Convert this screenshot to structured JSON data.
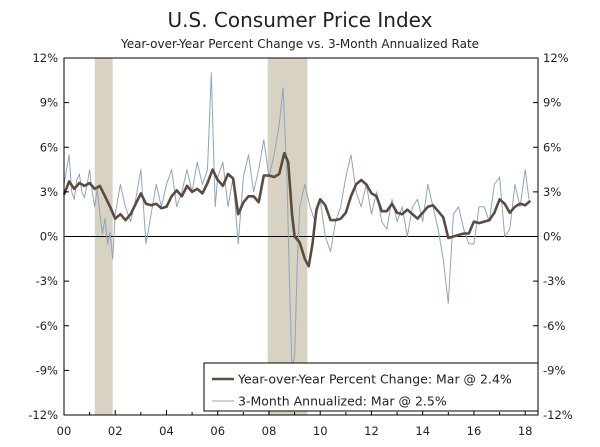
{
  "chart_data": {
    "type": "line",
    "title": "U.S. Consumer Price Index",
    "subtitle": "Year-over-Year Percent Change vs. 3-Month Annualized Rate",
    "xlim": [
      2000.0,
      2018.5
    ],
    "ylim": [
      -12,
      12
    ],
    "x_ticks": [
      {
        "value": 2000,
        "label": "00"
      },
      {
        "value": 2002,
        "label": "02"
      },
      {
        "value": 2004,
        "label": "04"
      },
      {
        "value": 2006,
        "label": "06"
      },
      {
        "value": 2008,
        "label": "08"
      },
      {
        "value": 2010,
        "label": "10"
      },
      {
        "value": 2012,
        "label": "12"
      },
      {
        "value": 2014,
        "label": "14"
      },
      {
        "value": 2016,
        "label": "16"
      },
      {
        "value": 2018,
        "label": "18"
      }
    ],
    "y_ticks": [
      {
        "value": 12,
        "label": "12%"
      },
      {
        "value": 9,
        "label": "9%"
      },
      {
        "value": 6,
        "label": "6%"
      },
      {
        "value": 3,
        "label": "3%"
      },
      {
        "value": 0,
        "label": "0%"
      },
      {
        "value": -3,
        "label": "-3%"
      },
      {
        "value": -6,
        "label": "-6%"
      },
      {
        "value": -9,
        "label": "-9%"
      },
      {
        "value": -12,
        "label": "-12%"
      }
    ],
    "recessions": [
      {
        "start": 2001.2,
        "end": 2001.9
      },
      {
        "start": 2007.95,
        "end": 2009.5
      }
    ],
    "series": [
      {
        "name": "3-Month Annualized: Mar @ 2.5%",
        "color": "#8ea5bf",
        "width": 1,
        "x": [
          2000.0,
          2000.1,
          2000.2,
          2000.3,
          2000.4,
          2000.5,
          2000.6,
          2000.7,
          2000.8,
          2000.9,
          2001.0,
          2001.1,
          2001.2,
          2001.3,
          2001.4,
          2001.5,
          2001.6,
          2001.7,
          2001.8,
          2001.9,
          2002.0,
          2002.2,
          2002.4,
          2002.6,
          2002.8,
          2003.0,
          2003.2,
          2003.4,
          2003.6,
          2003.8,
          2004.0,
          2004.2,
          2004.4,
          2004.6,
          2004.8,
          2005.0,
          2005.2,
          2005.4,
          2005.6,
          2005.75,
          2005.9,
          2006.0,
          2006.2,
          2006.4,
          2006.6,
          2006.8,
          2007.0,
          2007.2,
          2007.4,
          2007.6,
          2007.8,
          2008.0,
          2008.2,
          2008.4,
          2008.55,
          2008.7,
          2008.8,
          2008.9,
          2009.0,
          2009.1,
          2009.2,
          2009.4,
          2009.6,
          2009.8,
          2010.0,
          2010.2,
          2010.4,
          2010.6,
          2010.8,
          2011.0,
          2011.2,
          2011.4,
          2011.6,
          2011.8,
          2012.0,
          2012.2,
          2012.4,
          2012.6,
          2012.8,
          2013.0,
          2013.2,
          2013.4,
          2013.6,
          2013.8,
          2014.0,
          2014.2,
          2014.4,
          2014.6,
          2014.8,
          2015.0,
          2015.2,
          2015.4,
          2015.6,
          2015.8,
          2016.0,
          2016.2,
          2016.4,
          2016.6,
          2016.8,
          2017.0,
          2017.2,
          2017.4,
          2017.6,
          2017.8,
          2018.0,
          2018.15
        ],
        "values": [
          3.5,
          4.5,
          5.5,
          3.0,
          2.5,
          3.8,
          4.2,
          3.0,
          2.6,
          3.5,
          4.5,
          3.0,
          2.0,
          3.2,
          1.5,
          0.2,
          1.2,
          -0.5,
          0.3,
          -1.5,
          1.5,
          3.5,
          2.0,
          1.0,
          2.5,
          4.5,
          -0.5,
          1.5,
          3.5,
          2.0,
          3.5,
          4.5,
          2.0,
          3.0,
          4.5,
          3.0,
          5.0,
          3.5,
          4.5,
          11.0,
          2.0,
          4.0,
          5.0,
          2.0,
          4.0,
          -0.5,
          4.0,
          5.5,
          3.0,
          4.5,
          6.5,
          4.0,
          5.5,
          7.5,
          10.0,
          4.0,
          -3.0,
          -9.0,
          -8.0,
          -2.0,
          2.0,
          3.5,
          2.0,
          1.0,
          2.5,
          0.0,
          -1.0,
          1.0,
          2.0,
          4.0,
          5.5,
          3.0,
          2.0,
          3.5,
          1.5,
          3.0,
          1.0,
          0.5,
          2.5,
          1.0,
          2.0,
          0.0,
          2.0,
          2.5,
          1.0,
          3.5,
          2.0,
          0.5,
          -1.5,
          -4.5,
          1.5,
          2.0,
          0.5,
          -0.5,
          -0.5,
          2.0,
          2.0,
          1.0,
          3.5,
          4.0,
          0.0,
          0.5,
          3.5,
          2.0,
          4.5,
          2.5
        ]
      },
      {
        "name": "Year-over-Year Percent Change: Mar @ 2.4%",
        "color": "#5c4a3c",
        "width": 2.6,
        "x": [
          2000.0,
          2000.2,
          2000.4,
          2000.6,
          2000.8,
          2001.0,
          2001.2,
          2001.4,
          2001.6,
          2001.8,
          2002.0,
          2002.2,
          2002.4,
          2002.6,
          2002.8,
          2003.0,
          2003.2,
          2003.4,
          2003.6,
          2003.8,
          2004.0,
          2004.2,
          2004.4,
          2004.6,
          2004.8,
          2005.0,
          2005.2,
          2005.4,
          2005.6,
          2005.8,
          2006.0,
          2006.2,
          2006.4,
          2006.6,
          2006.8,
          2007.0,
          2007.2,
          2007.4,
          2007.6,
          2007.8,
          2008.0,
          2008.2,
          2008.4,
          2008.6,
          2008.75,
          2008.9,
          2009.0,
          2009.2,
          2009.4,
          2009.55,
          2009.7,
          2009.85,
          2010.0,
          2010.2,
          2010.4,
          2010.6,
          2010.8,
          2011.0,
          2011.2,
          2011.4,
          2011.6,
          2011.8,
          2012.0,
          2012.2,
          2012.4,
          2012.6,
          2012.8,
          2013.0,
          2013.2,
          2013.4,
          2013.6,
          2013.8,
          2014.0,
          2014.2,
          2014.4,
          2014.6,
          2014.8,
          2015.0,
          2015.2,
          2015.4,
          2015.6,
          2015.8,
          2016.0,
          2016.2,
          2016.4,
          2016.6,
          2016.8,
          2017.0,
          2017.2,
          2017.4,
          2017.6,
          2017.8,
          2018.0,
          2018.2
        ],
        "values": [
          2.8,
          3.7,
          3.2,
          3.6,
          3.4,
          3.6,
          3.2,
          3.4,
          2.7,
          2.0,
          1.2,
          1.5,
          1.1,
          1.5,
          2.2,
          2.9,
          2.2,
          2.1,
          2.2,
          1.9,
          2.0,
          2.7,
          3.1,
          2.7,
          3.4,
          3.0,
          3.2,
          2.9,
          3.6,
          4.5,
          3.8,
          3.4,
          4.2,
          3.9,
          1.5,
          2.3,
          2.7,
          2.7,
          2.3,
          4.1,
          4.1,
          4.0,
          4.2,
          5.6,
          5.0,
          1.5,
          0.0,
          -0.4,
          -1.5,
          -2.0,
          -0.5,
          1.8,
          2.5,
          2.1,
          1.1,
          1.1,
          1.2,
          1.6,
          2.7,
          3.5,
          3.8,
          3.5,
          2.9,
          2.7,
          1.7,
          1.7,
          2.2,
          1.6,
          1.5,
          1.8,
          1.5,
          1.2,
          1.6,
          2.0,
          2.1,
          1.7,
          1.3,
          -0.1,
          0.0,
          0.1,
          0.2,
          0.2,
          1.0,
          0.9,
          1.0,
          1.1,
          1.6,
          2.5,
          2.2,
          1.6,
          2.0,
          2.2,
          2.1,
          2.4
        ]
      }
    ]
  },
  "legend": [
    {
      "label": "Year-over-Year Percent Change: Mar @ 2.4%",
      "color": "#5c4a3c",
      "width": 2.6
    },
    {
      "label": "3-Month Annualized: Mar @ 2.5%",
      "color": "#8ea5bf",
      "width": 1
    }
  ],
  "colors": {
    "recession": "#d7d2c2",
    "axis": "#000000"
  }
}
